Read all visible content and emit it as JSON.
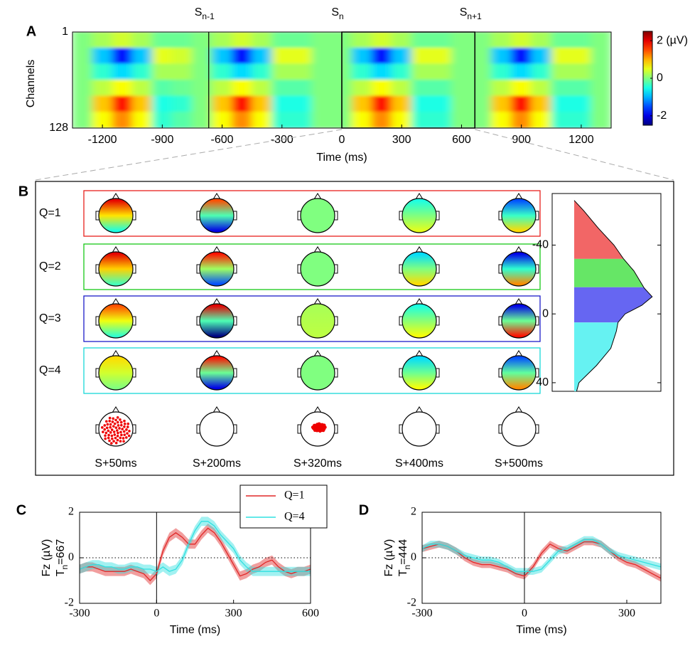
{
  "chart_data": [
    {
      "type": "heatmap",
      "panel": "A",
      "ylabel": "Channels",
      "xlabel": "Time (ms)",
      "x": [
        -1300,
        -1200,
        -1100,
        -1000,
        -900,
        -800,
        -700,
        -600,
        -500,
        -400,
        -300,
        -200,
        -100,
        0,
        100,
        200,
        300,
        400,
        500,
        600,
        700,
        800,
        900,
        1000,
        1100,
        1200,
        1300
      ],
      "z": [
        [
          0,
          0.2,
          0.4,
          0.2,
          -0.1,
          -0.1,
          0,
          0.2,
          0.4,
          0.2,
          -0.1,
          -0.1,
          0,
          0,
          0.2,
          0.4,
          0.2,
          -0.1,
          -0.1,
          0,
          0,
          0.2,
          0.4,
          0.2,
          -0.1,
          -0.1,
          0
        ],
        [
          0,
          -0.9,
          -1.8,
          -0.9,
          0.5,
          0.4,
          0,
          -0.9,
          -1.8,
          -0.9,
          0.5,
          0.5,
          0,
          0,
          -0.9,
          -1.8,
          -0.9,
          0.5,
          0.5,
          0,
          0,
          -0.9,
          -1.8,
          -0.9,
          0.5,
          0.5,
          0
        ],
        [
          0,
          -0.4,
          -0.8,
          -0.4,
          0.2,
          0.2,
          0,
          -0.4,
          -0.8,
          -0.4,
          0.2,
          0.2,
          0,
          0,
          -0.4,
          -0.8,
          -0.4,
          0.2,
          0.2,
          0,
          0,
          -0.4,
          -0.8,
          -0.4,
          0.2,
          0.2,
          0
        ],
        [
          0,
          0.3,
          0.6,
          0.3,
          -0.2,
          -0.1,
          0,
          0.3,
          0.6,
          0.3,
          -0.2,
          -0.2,
          0,
          0,
          0.3,
          0.6,
          0.3,
          -0.2,
          -0.2,
          0,
          0,
          0.3,
          0.6,
          0.3,
          -0.2,
          -0.2,
          0
        ],
        [
          0,
          0.9,
          1.8,
          0.9,
          -0.5,
          -0.4,
          0,
          0.9,
          1.8,
          0.9,
          -0.5,
          -0.5,
          0,
          0,
          0.9,
          1.8,
          0.9,
          -0.5,
          -0.5,
          0,
          0,
          0.9,
          1.8,
          0.9,
          -0.5,
          -0.5,
          0
        ],
        [
          0,
          0.6,
          1.2,
          0.6,
          -0.4,
          -0.2,
          0,
          0.6,
          1.2,
          0.6,
          -0.4,
          -0.4,
          0,
          0,
          0.6,
          1.2,
          0.6,
          -0.4,
          -0.4,
          0,
          0,
          0.6,
          1.2,
          0.6,
          -0.4,
          -0.4,
          0
        ]
      ],
      "xlim": [
        -1350,
        1350
      ],
      "xticks": [
        -1200,
        -900,
        -600,
        -300,
        0,
        300,
        600,
        900,
        1200
      ],
      "ylim": [
        1,
        128
      ],
      "yticks": [
        1,
        128
      ],
      "y_inverted": true,
      "zlim": [
        -2.5,
        2.5
      ],
      "zticks": [
        {
          "value": 2,
          "label": "2 (µV)"
        },
        0,
        -2
      ],
      "colormap": "jet",
      "markers": [
        {
          "text": "S",
          "sub": "n-1",
          "x": -667
        },
        {
          "text": "S",
          "sub": "n",
          "x": 0
        },
        {
          "text": "S",
          "sub": "n+1",
          "x": 667
        }
      ],
      "highlight": [
        0,
        667
      ]
    },
    {
      "type": "topomap",
      "panel": "B",
      "categories": [
        "S+50ms",
        "S+200ms",
        "S+320ms",
        "S+400ms",
        "S+500ms"
      ],
      "zlim": [
        -2.5,
        2.5
      ],
      "colormap": "jet",
      "series": [
        {
          "name": "Q=1",
          "color": "#e8201c",
          "front": [
            2,
            1.5,
            0,
            -0.5,
            -1.5
          ],
          "back": [
            -0.5,
            -2,
            0,
            0.5,
            0.8
          ]
        },
        {
          "name": "Q=2",
          "color": "#18c818",
          "front": [
            2,
            1.8,
            0,
            -0.8,
            -2
          ],
          "back": [
            -0.3,
            -1.5,
            0,
            0.8,
            1.2
          ]
        },
        {
          "name": "Q=3",
          "color": "#1c1cc8",
          "front": [
            1.5,
            2,
            0.2,
            -0.5,
            -2
          ],
          "back": [
            -0.4,
            -2.5,
            0.3,
            0.6,
            1.8
          ]
        },
        {
          "name": "Q=4",
          "color": "#18d8d8",
          "front": [
            0.8,
            1.8,
            0,
            -0.8,
            -1.5
          ],
          "back": [
            0,
            -2,
            0,
            0.6,
            1.2
          ]
        }
      ]
    },
    {
      "type": "density",
      "y": [
        -66,
        -60,
        -50,
        -40,
        -32,
        -25,
        -15,
        -10,
        -5,
        0,
        5,
        10,
        20,
        30,
        40,
        45
      ],
      "values": [
        0,
        0.12,
        0.3,
        0.5,
        0.62,
        0.75,
        0.88,
        0.98,
        0.85,
        0.64,
        0.55,
        0.53,
        0.46,
        0.28,
        0.06,
        0.03
      ],
      "ylim": [
        -70,
        45
      ],
      "yticks": [
        -40,
        0,
        40
      ],
      "y_inverted": true,
      "xlim": [
        0,
        1
      ],
      "band_edges": [
        -66,
        -32,
        -15.5,
        5,
        45
      ],
      "band_colors": [
        "#f26666",
        "#66e666",
        "#6666f2",
        "#66f2f2"
      ]
    },
    {
      "type": "line",
      "panel": "C",
      "xlabel": "Time (ms)",
      "ylabel": "Fz (µV)",
      "ylabel2": {
        "text": "T",
        "sub": "n",
        "tail": "=667"
      },
      "x": [
        -300,
        -275,
        -250,
        -225,
        -200,
        -175,
        -150,
        -125,
        -100,
        -75,
        -50,
        -25,
        0,
        25,
        50,
        75,
        100,
        125,
        150,
        175,
        200,
        225,
        250,
        275,
        300,
        325,
        350,
        375,
        400,
        425,
        450,
        475,
        500,
        525,
        550,
        575,
        600
      ],
      "series": [
        {
          "name": "Q=1",
          "color": "#e02828",
          "error": 0.2,
          "values": [
            -0.5,
            -0.4,
            -0.4,
            -0.5,
            -0.6,
            -0.6,
            -0.6,
            -0.6,
            -0.5,
            -0.6,
            -0.7,
            -1.0,
            -0.7,
            0.3,
            0.9,
            1.1,
            0.9,
            0.6,
            0.6,
            1.0,
            1.3,
            1.1,
            0.7,
            0.2,
            -0.3,
            -0.8,
            -0.7,
            -0.5,
            -0.4,
            -0.2,
            -0.1,
            -0.4,
            -0.6,
            -0.7,
            -0.6,
            -0.6,
            -0.5
          ]
        },
        {
          "name": "Q=4",
          "color": "#30e0e0",
          "error": 0.2,
          "values": [
            -0.5,
            -0.4,
            -0.3,
            -0.3,
            -0.4,
            -0.4,
            -0.5,
            -0.5,
            -0.4,
            -0.4,
            -0.5,
            -0.5,
            -0.6,
            -0.4,
            -0.6,
            -0.5,
            -0.1,
            0.6,
            1.2,
            1.6,
            1.6,
            1.4,
            1.0,
            0.7,
            0.4,
            -0.1,
            -0.4,
            -0.6,
            -0.6,
            -0.6,
            -0.6,
            -0.6,
            -0.6,
            -0.6,
            -0.6,
            -0.6,
            -0.6
          ]
        }
      ],
      "xlim": [
        -300,
        600
      ],
      "xticks": [
        -300,
        0,
        300,
        600
      ],
      "ylim": [
        -2,
        2
      ],
      "yticks": [
        -2,
        0,
        2
      ],
      "zero_lines": true,
      "legend": "top"
    },
    {
      "type": "line",
      "panel": "D",
      "xlabel": "Time (ms)",
      "ylabel": "Fz (µV)",
      "ylabel2": {
        "text": "T",
        "sub": "n",
        "tail": "=444"
      },
      "x": [
        -300,
        -275,
        -250,
        -225,
        -200,
        -175,
        -150,
        -125,
        -100,
        -75,
        -50,
        -25,
        0,
        25,
        50,
        75,
        100,
        125,
        150,
        175,
        200,
        225,
        250,
        275,
        300,
        325,
        350,
        375,
        400
      ],
      "series": [
        {
          "name": "Q=1",
          "color": "#e02828",
          "error": 0.15,
          "values": [
            0.4,
            0.5,
            0.6,
            0.5,
            0.3,
            0,
            -0.2,
            -0.3,
            -0.3,
            -0.4,
            -0.5,
            -0.7,
            -0.8,
            -0.4,
            0.2,
            0.6,
            0.4,
            0.3,
            0.5,
            0.7,
            0.7,
            0.6,
            0.3,
            0,
            -0.2,
            -0.3,
            -0.5,
            -0.7,
            -0.9
          ]
        },
        {
          "name": "Q=4",
          "color": "#30e0e0",
          "error": 0.15,
          "values": [
            0.4,
            0.6,
            0.6,
            0.5,
            0.3,
            0.1,
            0,
            -0.1,
            -0.1,
            -0.2,
            -0.4,
            -0.6,
            -0.6,
            -0.6,
            -0.5,
            -0.1,
            0.3,
            0.4,
            0.6,
            0.8,
            0.8,
            0.6,
            0.3,
            0.1,
            0,
            -0.1,
            -0.2,
            -0.3,
            -0.4
          ]
        }
      ],
      "xlim": [
        -300,
        400
      ],
      "xticks": [
        -300,
        0,
        300
      ],
      "ylim": [
        -2,
        2
      ],
      "yticks": [
        -2,
        0,
        2
      ],
      "zero_lines": true
    }
  ]
}
